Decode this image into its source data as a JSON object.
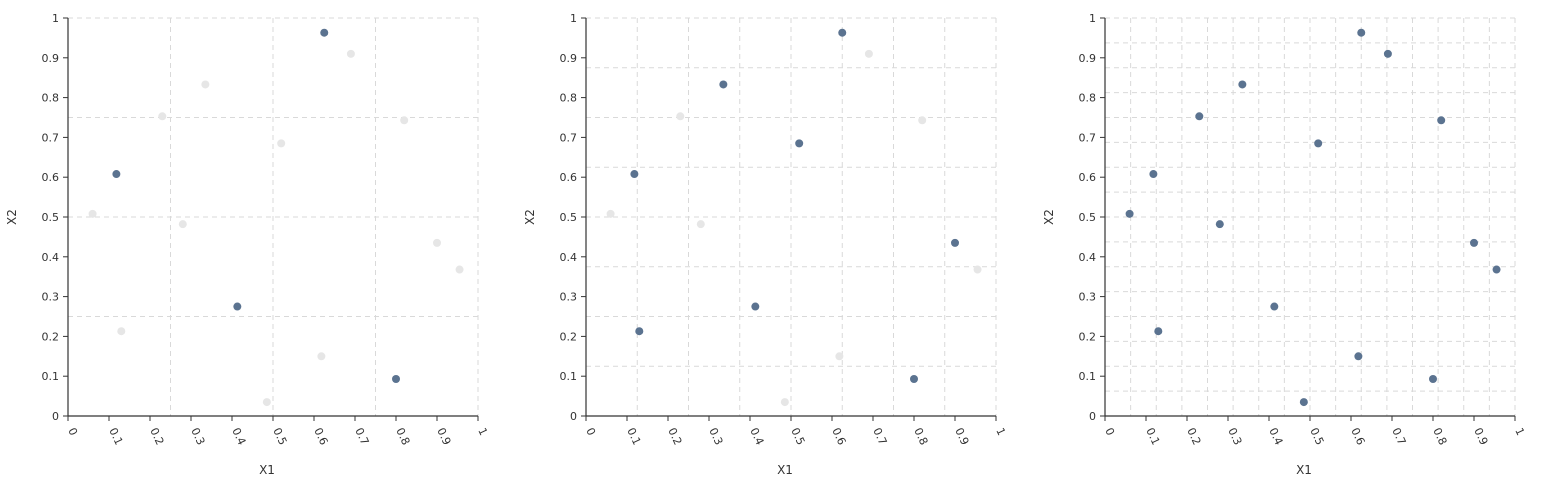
{
  "colors": {
    "highlight": "#5b7390",
    "faded": "#e6e6e6",
    "grid": "#d9d9d9",
    "axis": "#333333"
  },
  "chart_data": [
    {
      "type": "scatter",
      "title": "",
      "xlabel": "X1",
      "ylabel": "X2",
      "xlim": [
        0,
        1
      ],
      "ylim": [
        0,
        1
      ],
      "x_ticks": [
        "0",
        "0.1",
        "0.2",
        "0.3",
        "0.4",
        "0.5",
        "0.6",
        "0.7",
        "0.8",
        "0.9",
        "1"
      ],
      "y_ticks": [
        "0",
        "0.1",
        "0.2",
        "0.3",
        "0.4",
        "0.5",
        "0.6",
        "0.7",
        "0.8",
        "0.9",
        "1"
      ],
      "grid_divisions": 4,
      "points": [
        {
          "x": 0.625,
          "y": 0.963,
          "highlighted": true
        },
        {
          "x": 0.69,
          "y": 0.91,
          "highlighted": false
        },
        {
          "x": 0.335,
          "y": 0.833,
          "highlighted": false
        },
        {
          "x": 0.23,
          "y": 0.753,
          "highlighted": false
        },
        {
          "x": 0.82,
          "y": 0.743,
          "highlighted": false
        },
        {
          "x": 0.52,
          "y": 0.685,
          "highlighted": false
        },
        {
          "x": 0.118,
          "y": 0.608,
          "highlighted": true
        },
        {
          "x": 0.06,
          "y": 0.508,
          "highlighted": false
        },
        {
          "x": 0.28,
          "y": 0.482,
          "highlighted": false
        },
        {
          "x": 0.9,
          "y": 0.435,
          "highlighted": false
        },
        {
          "x": 0.955,
          "y": 0.368,
          "highlighted": false
        },
        {
          "x": 0.413,
          "y": 0.275,
          "highlighted": true
        },
        {
          "x": 0.13,
          "y": 0.213,
          "highlighted": false
        },
        {
          "x": 0.618,
          "y": 0.15,
          "highlighted": false
        },
        {
          "x": 0.8,
          "y": 0.093,
          "highlighted": true
        },
        {
          "x": 0.485,
          "y": 0.035,
          "highlighted": false
        }
      ]
    },
    {
      "type": "scatter",
      "title": "",
      "xlabel": "X1",
      "ylabel": "X2",
      "xlim": [
        0,
        1
      ],
      "ylim": [
        0,
        1
      ],
      "x_ticks": [
        "0",
        "0.1",
        "0.2",
        "0.3",
        "0.4",
        "0.5",
        "0.6",
        "0.7",
        "0.8",
        "0.9",
        "1"
      ],
      "y_ticks": [
        "0",
        "0.1",
        "0.2",
        "0.3",
        "0.4",
        "0.5",
        "0.6",
        "0.7",
        "0.8",
        "0.9",
        "1"
      ],
      "grid_divisions": 8,
      "points": [
        {
          "x": 0.625,
          "y": 0.963,
          "highlighted": true
        },
        {
          "x": 0.69,
          "y": 0.91,
          "highlighted": false
        },
        {
          "x": 0.335,
          "y": 0.833,
          "highlighted": true
        },
        {
          "x": 0.23,
          "y": 0.753,
          "highlighted": false
        },
        {
          "x": 0.82,
          "y": 0.743,
          "highlighted": false
        },
        {
          "x": 0.52,
          "y": 0.685,
          "highlighted": true
        },
        {
          "x": 0.118,
          "y": 0.608,
          "highlighted": true
        },
        {
          "x": 0.06,
          "y": 0.508,
          "highlighted": false
        },
        {
          "x": 0.28,
          "y": 0.482,
          "highlighted": false
        },
        {
          "x": 0.9,
          "y": 0.435,
          "highlighted": true
        },
        {
          "x": 0.955,
          "y": 0.368,
          "highlighted": false
        },
        {
          "x": 0.413,
          "y": 0.275,
          "highlighted": true
        },
        {
          "x": 0.13,
          "y": 0.213,
          "highlighted": true
        },
        {
          "x": 0.618,
          "y": 0.15,
          "highlighted": false
        },
        {
          "x": 0.8,
          "y": 0.093,
          "highlighted": true
        },
        {
          "x": 0.485,
          "y": 0.035,
          "highlighted": false
        }
      ]
    },
    {
      "type": "scatter",
      "title": "",
      "xlabel": "X1",
      "ylabel": "X2",
      "xlim": [
        0,
        1
      ],
      "ylim": [
        0,
        1
      ],
      "x_ticks": [
        "0",
        "0.1",
        "0.2",
        "0.3",
        "0.4",
        "0.5",
        "0.6",
        "0.7",
        "0.8",
        "0.9",
        "1"
      ],
      "y_ticks": [
        "0",
        "0.1",
        "0.2",
        "0.3",
        "0.4",
        "0.5",
        "0.6",
        "0.7",
        "0.8",
        "0.9",
        "1"
      ],
      "grid_divisions": 16,
      "points": [
        {
          "x": 0.625,
          "y": 0.963,
          "highlighted": true
        },
        {
          "x": 0.69,
          "y": 0.91,
          "highlighted": true
        },
        {
          "x": 0.335,
          "y": 0.833,
          "highlighted": true
        },
        {
          "x": 0.23,
          "y": 0.753,
          "highlighted": true
        },
        {
          "x": 0.82,
          "y": 0.743,
          "highlighted": true
        },
        {
          "x": 0.52,
          "y": 0.685,
          "highlighted": true
        },
        {
          "x": 0.118,
          "y": 0.608,
          "highlighted": true
        },
        {
          "x": 0.06,
          "y": 0.508,
          "highlighted": true
        },
        {
          "x": 0.28,
          "y": 0.482,
          "highlighted": true
        },
        {
          "x": 0.9,
          "y": 0.435,
          "highlighted": true
        },
        {
          "x": 0.955,
          "y": 0.368,
          "highlighted": true
        },
        {
          "x": 0.413,
          "y": 0.275,
          "highlighted": true
        },
        {
          "x": 0.13,
          "y": 0.213,
          "highlighted": true
        },
        {
          "x": 0.618,
          "y": 0.15,
          "highlighted": true
        },
        {
          "x": 0.8,
          "y": 0.093,
          "highlighted": true
        },
        {
          "x": 0.485,
          "y": 0.035,
          "highlighted": true
        }
      ]
    }
  ]
}
